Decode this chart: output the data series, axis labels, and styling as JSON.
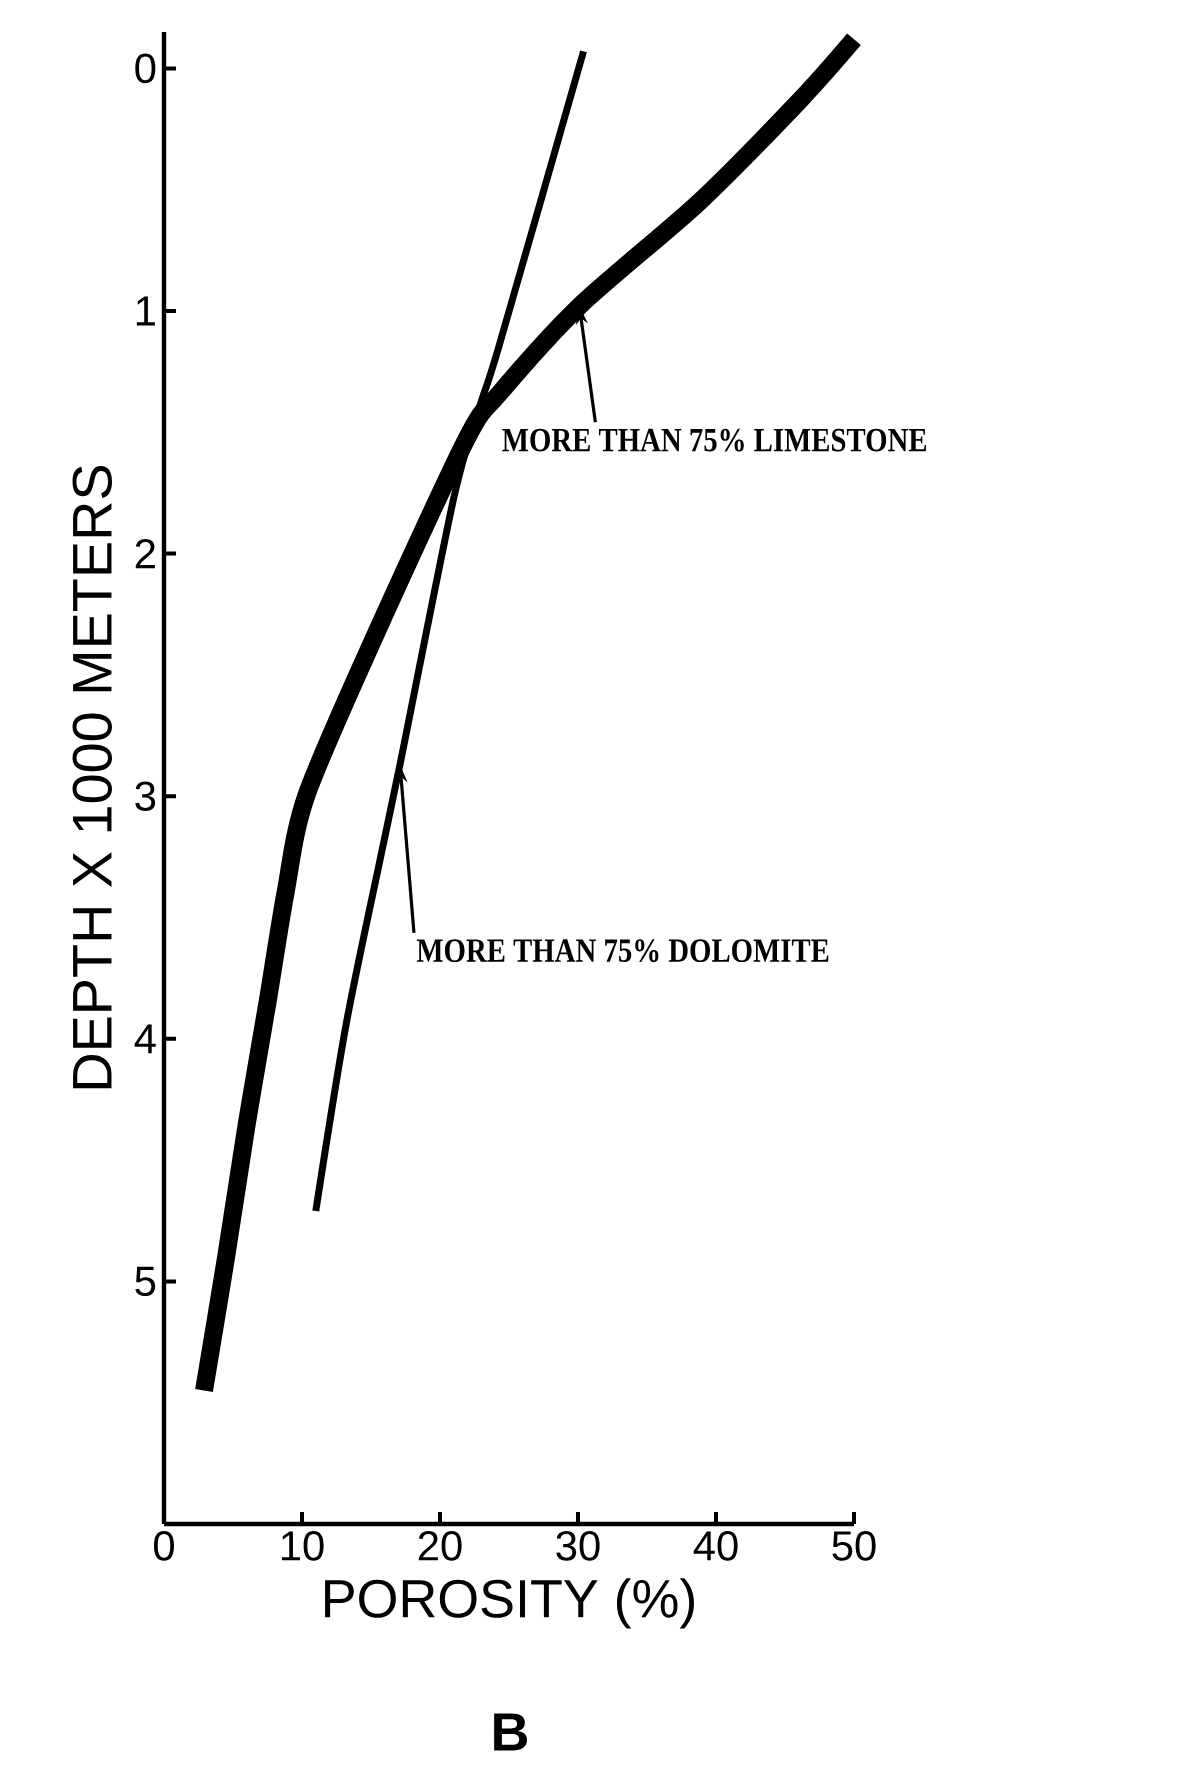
{
  "chart_data": {
    "type": "line",
    "xlabel": "POROSITY   (%)",
    "ylabel": "DEPTH X 1000 METERS",
    "xlim": [
      0,
      50
    ],
    "ylim": [
      6,
      -0.15
    ],
    "xticks": [
      0,
      10,
      20,
      30,
      40,
      50
    ],
    "yticks": [
      0,
      1,
      2,
      3,
      4,
      5
    ],
    "grid": false,
    "marker": "none",
    "line_style": "solid",
    "series": [
      {
        "color": "#000000",
        "x": [
          2.9,
          4.5,
          6.0,
          7.5,
          8.8,
          10.3,
          15.2,
          21.9,
          24.3,
          30.1,
          38.8,
          46.1,
          50
        ],
        "values": [
          5.45,
          4.9,
          4.35,
          3.85,
          3.4,
          3.0,
          2.35,
          1.53,
          1.34,
          0.98,
          0.55,
          0.13,
          -0.12
        ]
      },
      {
        "color": "#000000",
        "x": [
          11.0,
          13.2,
          15.7,
          17.1,
          21.0,
          22.9,
          24.3,
          30.4
        ],
        "values": [
          4.71,
          3.94,
          3.25,
          2.87,
          1.77,
          1.39,
          1.14,
          -0.07
        ]
      }
    ],
    "annotations": [
      {
        "text": "MORE THAN 75% LIMESTONE",
        "x": 30.1,
        "y": 0.98
      },
      {
        "text": "MORE THAN 75% DOLOMITE",
        "x": 17.1,
        "y": 2.87
      },
      "B"
    ]
  }
}
